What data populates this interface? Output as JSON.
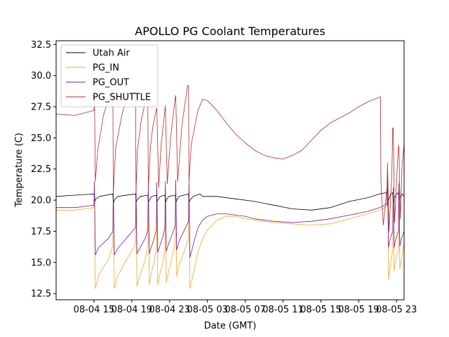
{
  "chart_data": {
    "type": "line",
    "title": "APOLLO PG Coolant Temperatures",
    "xlabel": "Date (GMT)",
    "ylabel": "Temperature (C)",
    "xlim": [
      11.0,
      47.8
    ],
    "ylim": [
      12.0,
      32.8
    ],
    "x_unit": "hours since 08-04 00:00 GMT",
    "x_ticks": [
      {
        "x": 15,
        "label": "08-04 15"
      },
      {
        "x": 19,
        "label": "08-04 19"
      },
      {
        "x": 23,
        "label": "08-04 23"
      },
      {
        "x": 27,
        "label": "08-05 03"
      },
      {
        "x": 31,
        "label": "08-05 07"
      },
      {
        "x": 35,
        "label": "08-05 11"
      },
      {
        "x": 39,
        "label": "08-05 15"
      },
      {
        "x": 43,
        "label": "08-05 19"
      },
      {
        "x": 47,
        "label": "08-05 23"
      }
    ],
    "y_ticks": [
      {
        "y": 12.5,
        "label": "12.5"
      },
      {
        "y": 15.0,
        "label": "15.0"
      },
      {
        "y": 17.5,
        "label": "17.5"
      },
      {
        "y": 20.0,
        "label": "20.0"
      },
      {
        "y": 22.5,
        "label": "22.5"
      },
      {
        "y": 25.0,
        "label": "25.0"
      },
      {
        "y": 27.5,
        "label": "27.5"
      },
      {
        "y": 30.0,
        "label": "30.0"
      },
      {
        "y": 32.5,
        "label": "32.5"
      }
    ],
    "legend_position": "top-left",
    "series": [
      {
        "name": "Utah Air",
        "color": "#000000",
        "x": [
          11.0,
          13.0,
          15.0,
          15.1,
          15.2,
          15.6,
          17.0,
          17.05,
          17.15,
          17.5,
          19.4,
          19.45,
          19.55,
          19.9,
          20.7,
          20.75,
          20.85,
          21.1,
          21.6,
          21.65,
          21.75,
          22.0,
          22.5,
          22.55,
          22.65,
          22.9,
          23.6,
          23.65,
          23.75,
          24.0,
          25.0,
          25.05,
          25.15,
          25.5,
          26.2,
          26.5,
          28.0,
          30.0,
          32.0,
          34.0,
          36.0,
          38.0,
          40.0,
          42.0,
          44.0,
          45.2,
          46.0,
          46.05,
          46.15,
          46.4,
          46.6,
          46.65,
          46.75,
          47.0,
          47.2,
          47.25,
          47.35,
          47.6,
          47.8
        ],
        "values": [
          20.3,
          20.4,
          20.5,
          19.9,
          20.1,
          20.3,
          20.5,
          19.7,
          20.0,
          20.3,
          20.5,
          19.8,
          20.0,
          20.3,
          20.4,
          19.8,
          20.0,
          20.3,
          20.4,
          19.8,
          20.0,
          20.3,
          20.4,
          19.7,
          20.0,
          20.3,
          20.4,
          19.7,
          20.0,
          20.3,
          20.5,
          19.8,
          20.0,
          20.3,
          20.5,
          20.3,
          20.3,
          20.1,
          19.9,
          19.6,
          19.3,
          19.2,
          19.4,
          19.9,
          20.2,
          20.5,
          20.6,
          19.6,
          20.0,
          20.5,
          20.6,
          19.7,
          20.1,
          20.5,
          20.6,
          19.9,
          20.2,
          20.5,
          20.3
        ]
      },
      {
        "name": "PG_IN",
        "color": "#f5a623",
        "x": [
          11.0,
          13.0,
          15.0,
          15.05,
          15.15,
          15.5,
          16.5,
          17.0,
          17.05,
          17.15,
          17.5,
          18.5,
          19.4,
          19.45,
          19.55,
          19.9,
          20.4,
          20.7,
          20.75,
          20.85,
          21.1,
          21.4,
          21.6,
          21.65,
          21.75,
          22.0,
          22.3,
          22.5,
          22.55,
          22.65,
          22.9,
          23.3,
          23.6,
          23.65,
          23.75,
          24.0,
          24.5,
          25.0,
          25.05,
          25.15,
          25.6,
          26.0,
          26.5,
          27.0,
          28.0,
          29.0,
          30.0,
          31.0,
          32.0,
          34.0,
          36.0,
          38.0,
          40.0,
          42.0,
          44.0,
          45.2,
          46.0,
          46.05,
          46.15,
          46.3,
          46.6,
          46.65,
          46.75,
          46.9,
          47.2,
          47.25,
          47.35,
          47.5,
          47.8
        ],
        "values": [
          19.2,
          19.2,
          19.4,
          21.2,
          12.9,
          14.0,
          15.2,
          16.3,
          21.0,
          12.9,
          13.9,
          15.3,
          16.4,
          21.0,
          13.1,
          14.0,
          15.2,
          16.3,
          21.0,
          13.2,
          14.2,
          15.2,
          16.2,
          20.8,
          13.2,
          14.2,
          15.0,
          16.0,
          21.0,
          13.4,
          14.3,
          15.5,
          16.5,
          21.5,
          13.9,
          14.8,
          15.8,
          16.9,
          21.2,
          12.9,
          14.4,
          15.8,
          16.9,
          17.6,
          18.4,
          18.7,
          18.7,
          18.5,
          18.4,
          18.2,
          18.1,
          18.0,
          18.1,
          18.5,
          18.9,
          19.2,
          19.5,
          22.5,
          13.6,
          14.6,
          16.0,
          21.0,
          14.3,
          15.2,
          16.0,
          21.5,
          14.5,
          15.2,
          16.5
        ]
      },
      {
        "name": "PG_OUT",
        "color": "#7b1a8a",
        "x": [
          11.0,
          13.0,
          15.0,
          15.05,
          15.15,
          15.5,
          16.5,
          17.0,
          17.05,
          17.15,
          17.5,
          18.5,
          19.4,
          19.45,
          19.55,
          19.9,
          20.4,
          20.7,
          20.75,
          20.85,
          21.1,
          21.4,
          21.6,
          21.65,
          21.75,
          22.0,
          22.3,
          22.5,
          22.55,
          22.65,
          22.9,
          23.3,
          23.6,
          23.65,
          23.75,
          24.0,
          24.5,
          25.0,
          25.05,
          25.15,
          25.6,
          26.0,
          26.5,
          27.0,
          28.0,
          29.0,
          30.0,
          31.0,
          32.0,
          34.0,
          36.0,
          38.0,
          40.0,
          42.0,
          44.0,
          45.2,
          46.0,
          46.05,
          46.15,
          46.3,
          46.6,
          46.65,
          46.75,
          46.9,
          47.2,
          47.25,
          47.35,
          47.5,
          47.8
        ],
        "values": [
          19.4,
          19.4,
          19.6,
          21.5,
          15.6,
          16.2,
          16.9,
          17.5,
          21.0,
          15.6,
          16.1,
          17.0,
          17.8,
          21.0,
          15.7,
          16.2,
          16.9,
          17.6,
          21.2,
          15.7,
          16.3,
          17.0,
          17.7,
          21.4,
          15.8,
          16.4,
          17.1,
          17.8,
          21.5,
          15.9,
          16.5,
          17.3,
          18.0,
          21.6,
          16.0,
          16.7,
          17.5,
          18.3,
          21.5,
          15.4,
          16.7,
          17.8,
          18.4,
          18.7,
          18.9,
          18.9,
          18.8,
          18.7,
          18.5,
          18.3,
          18.2,
          18.3,
          18.5,
          18.8,
          19.1,
          19.4,
          19.7,
          22.3,
          16.2,
          16.8,
          17.5,
          21.0,
          16.2,
          16.8,
          17.5,
          21.3,
          16.3,
          16.9,
          17.5
        ]
      },
      {
        "name": "PG_SHUTTLE",
        "color": "#b22b2b",
        "x": [
          11.0,
          13.0,
          14.0,
          15.0,
          15.05,
          15.15,
          15.4,
          16.0,
          16.7,
          17.0,
          17.05,
          17.3,
          18.0,
          18.6,
          19.4,
          19.45,
          19.6,
          20.0,
          20.4,
          20.7,
          20.75,
          20.95,
          21.2,
          21.6,
          21.65,
          21.85,
          22.1,
          22.5,
          22.55,
          22.75,
          23.1,
          23.6,
          23.65,
          23.85,
          24.3,
          24.9,
          25.0,
          25.05,
          25.3,
          26.0,
          26.5,
          27.0,
          28.0,
          29.0,
          30.0,
          31.0,
          32.0,
          33.0,
          34.0,
          35.0,
          36.0,
          37.0,
          38.0,
          39.0,
          40.0,
          41.0,
          42.0,
          43.0,
          44.0,
          45.0,
          45.3,
          45.35,
          45.6,
          46.0,
          46.05,
          46.2,
          46.5,
          46.6,
          46.65,
          46.8,
          47.1,
          47.2,
          47.25,
          47.4,
          47.6,
          47.8
        ],
        "values": [
          26.9,
          26.8,
          27.0,
          27.2,
          28.9,
          21.5,
          24.0,
          26.8,
          28.5,
          28.9,
          20.6,
          24.2,
          27.0,
          28.4,
          28.7,
          20.7,
          24.0,
          26.4,
          27.8,
          27.9,
          20.9,
          24.0,
          25.8,
          27.3,
          27.4,
          21.0,
          24.4,
          27.2,
          27.6,
          21.3,
          25.0,
          28.2,
          28.4,
          21.5,
          26.0,
          29.2,
          29.2,
          21.5,
          24.5,
          27.2,
          28.1,
          28.0,
          27.2,
          26.2,
          25.3,
          24.6,
          24.0,
          23.6,
          23.4,
          23.3,
          23.6,
          24.0,
          24.8,
          25.6,
          26.2,
          26.6,
          27.0,
          27.5,
          27.9,
          28.2,
          28.3,
          21.5,
          18.0,
          21.0,
          23.0,
          17.5,
          22.0,
          25.8,
          25.8,
          18.2,
          23.0,
          24.2,
          24.4,
          18.5,
          23.0,
          24.5
        ]
      }
    ]
  }
}
